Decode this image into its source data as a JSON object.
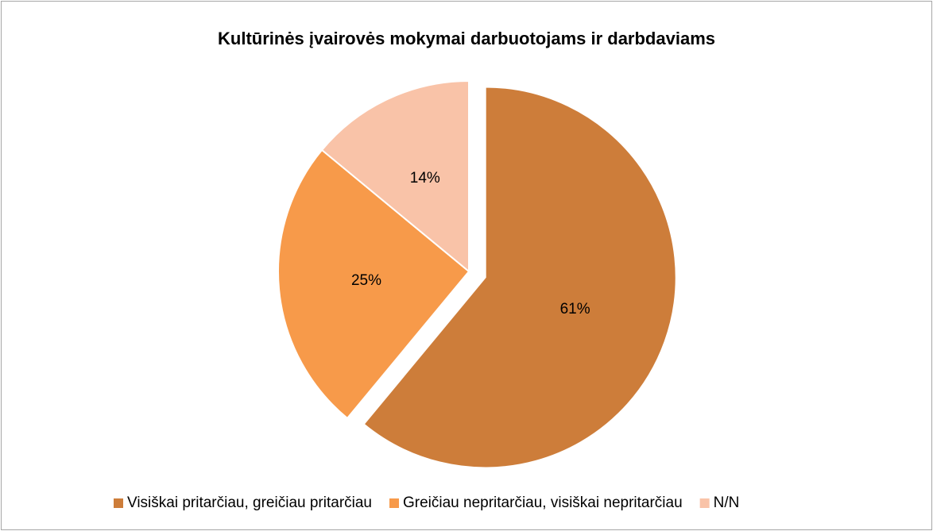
{
  "chart_data": {
    "type": "pie",
    "title": "Kultūrinės įvairovės mokymai darbuotojams ir darbdaviams",
    "categories": [
      "Visiškai pritarčiau, greičiau pritarčiau",
      "Greičiau nepritarčiau, visiškai nepritarčiau",
      "N/N"
    ],
    "values": [
      61,
      25,
      14
    ],
    "value_labels": [
      "61%",
      "25%",
      "14%"
    ],
    "colors": [
      "#CD7D3A",
      "#F79A4A",
      "#F9C3A8"
    ],
    "legend": "bottom"
  }
}
